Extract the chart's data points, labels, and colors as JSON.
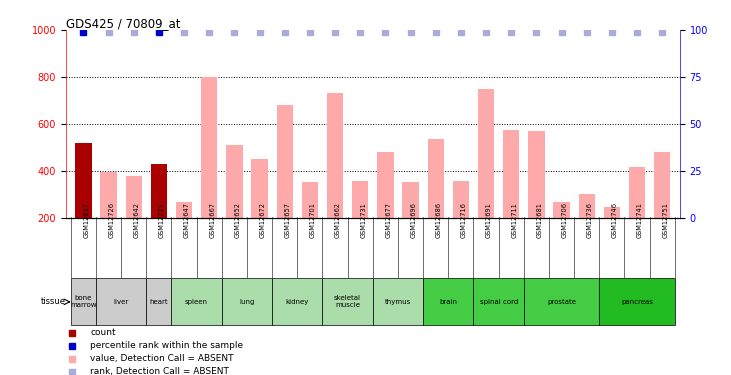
{
  "title": "GDS425 / 70809_at",
  "samples": [
    "GSM12637",
    "GSM12726",
    "GSM12642",
    "GSM12721",
    "GSM12647",
    "GSM12667",
    "GSM12652",
    "GSM12672",
    "GSM12657",
    "GSM12701",
    "GSM12662",
    "GSM12731",
    "GSM12677",
    "GSM12696",
    "GSM12686",
    "GSM12716",
    "GSM12691",
    "GSM12711",
    "GSM12681",
    "GSM12706",
    "GSM12736",
    "GSM12746",
    "GSM12741",
    "GSM12751"
  ],
  "bar_values": [
    520,
    395,
    375,
    430,
    265,
    800,
    510,
    450,
    680,
    350,
    730,
    355,
    480,
    350,
    535,
    355,
    750,
    575,
    570,
    265,
    300,
    245,
    415,
    480
  ],
  "bar_colors": [
    "#aa0000",
    "#ffaaaa",
    "#ffaaaa",
    "#aa0000",
    "#ffaaaa",
    "#ffaaaa",
    "#ffaaaa",
    "#ffaaaa",
    "#ffaaaa",
    "#ffaaaa",
    "#ffaaaa",
    "#ffaaaa",
    "#ffaaaa",
    "#ffaaaa",
    "#ffaaaa",
    "#ffaaaa",
    "#ffaaaa",
    "#ffaaaa",
    "#ffaaaa",
    "#ffaaaa",
    "#ffaaaa",
    "#ffaaaa",
    "#ffaaaa",
    "#ffaaaa"
  ],
  "perc_dark_idx": [
    0,
    3
  ],
  "ylim_left": [
    200,
    1000
  ],
  "ylim_right": [
    0,
    100
  ],
  "yticks_left": [
    200,
    400,
    600,
    800,
    1000
  ],
  "yticks_right": [
    0,
    25,
    50,
    75,
    100
  ],
  "gridlines": [
    400,
    600,
    800
  ],
  "tissue_groups": [
    {
      "label": "bone\nmarrow",
      "start": 0,
      "end": 1,
      "color": "#cccccc"
    },
    {
      "label": "liver",
      "start": 1,
      "end": 3,
      "color": "#cccccc"
    },
    {
      "label": "heart",
      "start": 3,
      "end": 4,
      "color": "#cccccc"
    },
    {
      "label": "spleen",
      "start": 4,
      "end": 6,
      "color": "#aaddaa"
    },
    {
      "label": "lung",
      "start": 6,
      "end": 8,
      "color": "#aaddaa"
    },
    {
      "label": "kidney",
      "start": 8,
      "end": 10,
      "color": "#aaddaa"
    },
    {
      "label": "skeletal\nmuscle",
      "start": 10,
      "end": 12,
      "color": "#aaddaa"
    },
    {
      "label": "thymus",
      "start": 12,
      "end": 14,
      "color": "#aaddaa"
    },
    {
      "label": "brain",
      "start": 14,
      "end": 16,
      "color": "#44cc44"
    },
    {
      "label": "spinal cord",
      "start": 16,
      "end": 18,
      "color": "#44cc44"
    },
    {
      "label": "prostate",
      "start": 18,
      "end": 21,
      "color": "#44cc44"
    },
    {
      "label": "pancreas",
      "start": 21,
      "end": 24,
      "color": "#22bb22"
    }
  ],
  "perc_dark_color": "#0000cc",
  "perc_light_color": "#aaaadd",
  "bar_bottom": 200,
  "xtick_bg_color": "#cccccc",
  "legend": [
    {
      "color": "#aa0000",
      "marker": "s",
      "label": "count"
    },
    {
      "color": "#0000cc",
      "marker": "s",
      "label": "percentile rank within the sample"
    },
    {
      "color": "#ffaaaa",
      "marker": "s",
      "label": "value, Detection Call = ABSENT"
    },
    {
      "color": "#aaaadd",
      "marker": "s",
      "label": "rank, Detection Call = ABSENT"
    }
  ]
}
